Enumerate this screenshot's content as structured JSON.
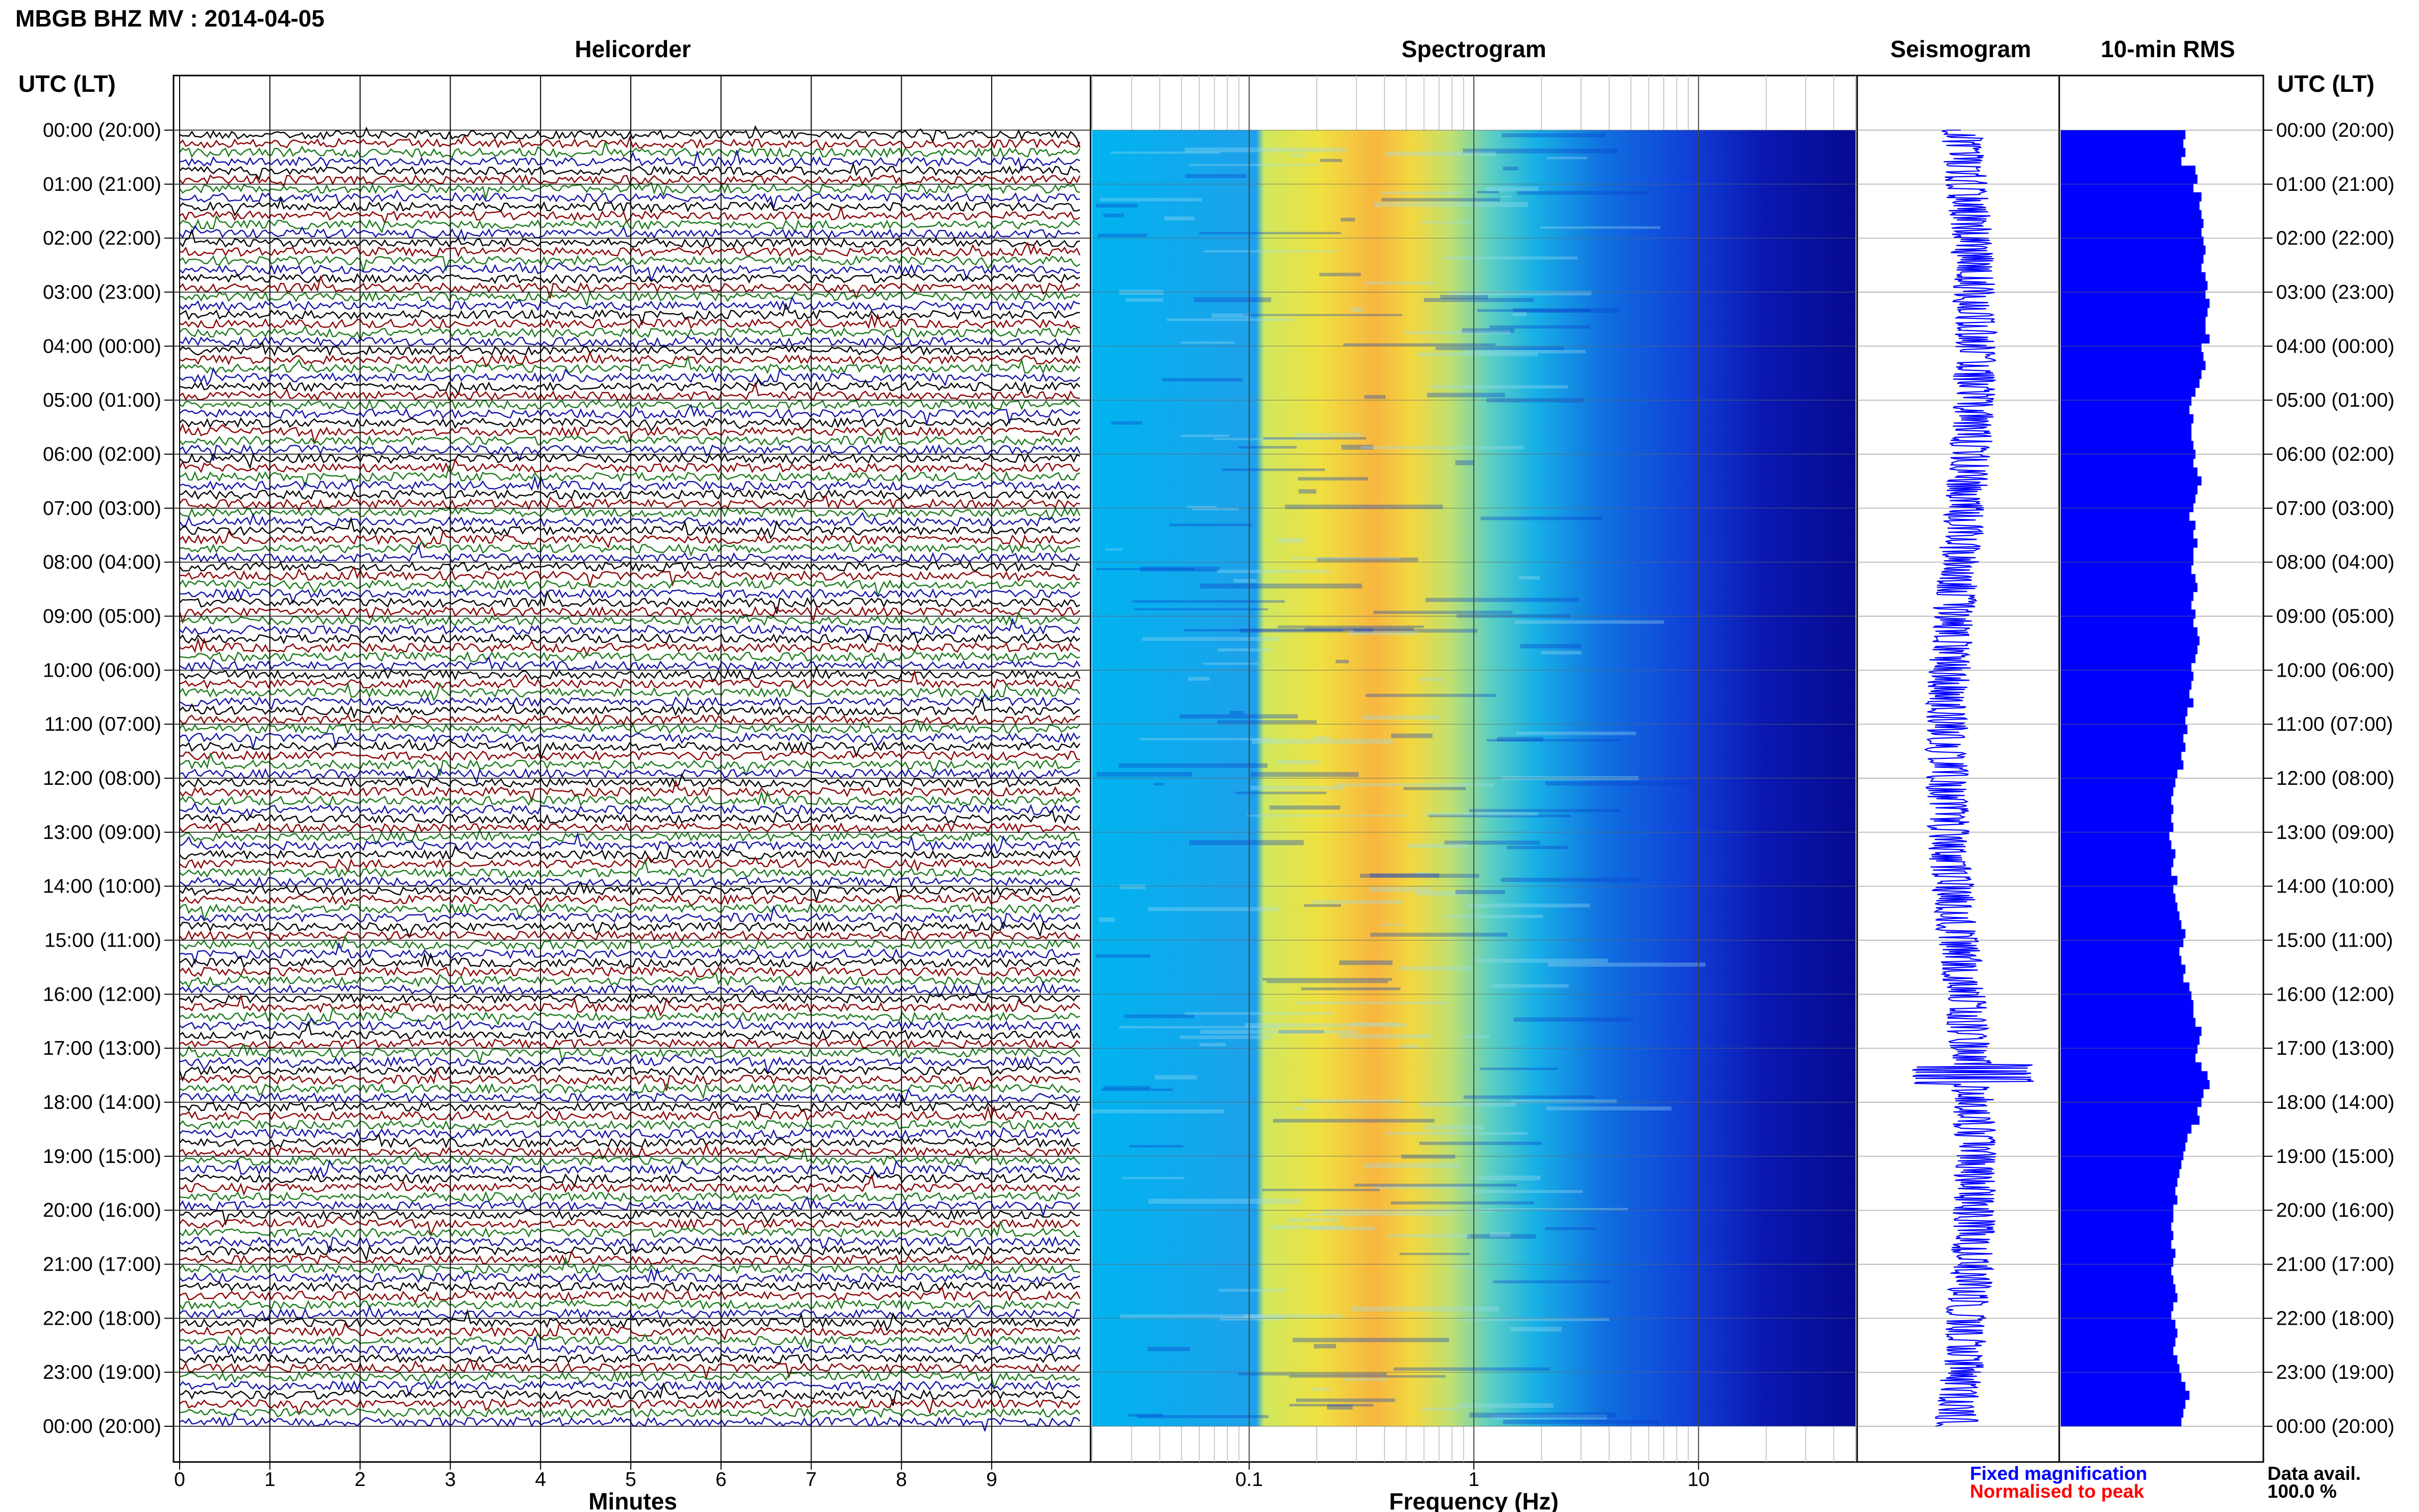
{
  "header": {
    "title": "MBGB BHZ MV : 2014-04-05"
  },
  "panels": {
    "helicorder": "Helicorder",
    "spectrogram": "Spectrogram",
    "seismogram": "Seismogram",
    "rms": "10-min RMS"
  },
  "axis_titles": {
    "left_time": "UTC (LT)",
    "right_time": "UTC (LT)",
    "helicorder_x": "Minutes",
    "spectrogram_x": "Frequency (Hz)"
  },
  "legend": {
    "fixed": "Fixed magnification",
    "fixed_color": "#0000ff",
    "normalised": "Normalised to peak",
    "normalised_color": "#ff0000"
  },
  "data_avail": {
    "label": "Data avail.",
    "value": "100.0 %"
  },
  "colors": {
    "trace_cycle": [
      "#000000",
      "#8b0000",
      "#1a7a1a",
      "#1414aa"
    ],
    "seismogram": "#0000ff",
    "rms_bars": "#0000ff"
  },
  "chart_data": [
    {
      "type": "line",
      "title": "Helicorder",
      "xlabel": "Minutes",
      "x_ticks": [
        "0",
        "1",
        "2",
        "3",
        "4",
        "5",
        "6",
        "7",
        "8",
        "9"
      ],
      "xlim": [
        0,
        10
      ],
      "rows_per_hour": 6,
      "y_ticks_utc": [
        "00:00 (20:00)",
        "01:00 (21:00)",
        "02:00 (22:00)",
        "03:00 (23:00)",
        "04:00 (00:00)",
        "05:00 (01:00)",
        "06:00 (02:00)",
        "07:00 (03:00)",
        "08:00 (04:00)",
        "09:00 (05:00)",
        "10:00 (06:00)",
        "11:00 (07:00)",
        "12:00 (08:00)",
        "13:00 (09:00)",
        "14:00 (10:00)",
        "15:00 (11:00)",
        "16:00 (12:00)",
        "17:00 (13:00)",
        "18:00 (14:00)",
        "19:00 (15:00)",
        "20:00 (16:00)",
        "21:00 (17:00)",
        "22:00 (18:00)",
        "23:00 (19:00)",
        "00:00 (20:00)"
      ]
    },
    {
      "type": "heatmap",
      "title": "Spectrogram",
      "xlabel": "Frequency (Hz)",
      "x_scale": "log",
      "xlim": [
        0.02,
        50
      ],
      "x_ticks": [
        "0.1",
        "1",
        "10"
      ]
    },
    {
      "type": "line",
      "title": "Seismogram"
    },
    {
      "type": "bar",
      "title": "10-min RMS",
      "orientation": "horizontal",
      "values": [
        0.62,
        0.61,
        0.62,
        0.6,
        0.67,
        0.68,
        0.66,
        0.7,
        0.69,
        0.7,
        0.71,
        0.7,
        0.71,
        0.72,
        0.71,
        0.7,
        0.72,
        0.73,
        0.72,
        0.74,
        0.73,
        0.72,
        0.72,
        0.74,
        0.7,
        0.71,
        0.72,
        0.7,
        0.69,
        0.67,
        0.65,
        0.64,
        0.66,
        0.65,
        0.65,
        0.66,
        0.67,
        0.66,
        0.68,
        0.7,
        0.68,
        0.67,
        0.66,
        0.64,
        0.67,
        0.66,
        0.68,
        0.66,
        0.66,
        0.65,
        0.67,
        0.68,
        0.66,
        0.65,
        0.67,
        0.66,
        0.68,
        0.69,
        0.68,
        0.67,
        0.65,
        0.66,
        0.65,
        0.64,
        0.66,
        0.63,
        0.62,
        0.63,
        0.61,
        0.62,
        0.6,
        0.61,
        0.58,
        0.57,
        0.56,
        0.55,
        0.56,
        0.55,
        0.56,
        0.54,
        0.55,
        0.57,
        0.56,
        0.55,
        0.58,
        0.56,
        0.57,
        0.58,
        0.59,
        0.6,
        0.62,
        0.61,
        0.59,
        0.6,
        0.62,
        0.61,
        0.64,
        0.65,
        0.66,
        0.66,
        0.67,
        0.7,
        0.69,
        0.68,
        0.67,
        0.7,
        0.73,
        0.74,
        0.71,
        0.7,
        0.68,
        0.69,
        0.65,
        0.63,
        0.62,
        0.61,
        0.6,
        0.59,
        0.58,
        0.57,
        0.58,
        0.56,
        0.56,
        0.55,
        0.56,
        0.55,
        0.57,
        0.56,
        0.55,
        0.56,
        0.57,
        0.58,
        0.56,
        0.55,
        0.57,
        0.58,
        0.57,
        0.56,
        0.58,
        0.59,
        0.6,
        0.62,
        0.64,
        0.62,
        0.61,
        0.6
      ]
    }
  ]
}
